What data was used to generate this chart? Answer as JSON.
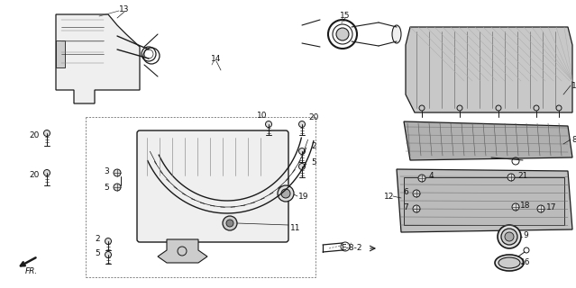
{
  "bg_color": "#ffffff",
  "line_color": "#1a1a1a",
  "text_color": "#111111",
  "gray_fill": "#d8d8d8",
  "light_fill": "#efefef",
  "font_size": 6.5
}
